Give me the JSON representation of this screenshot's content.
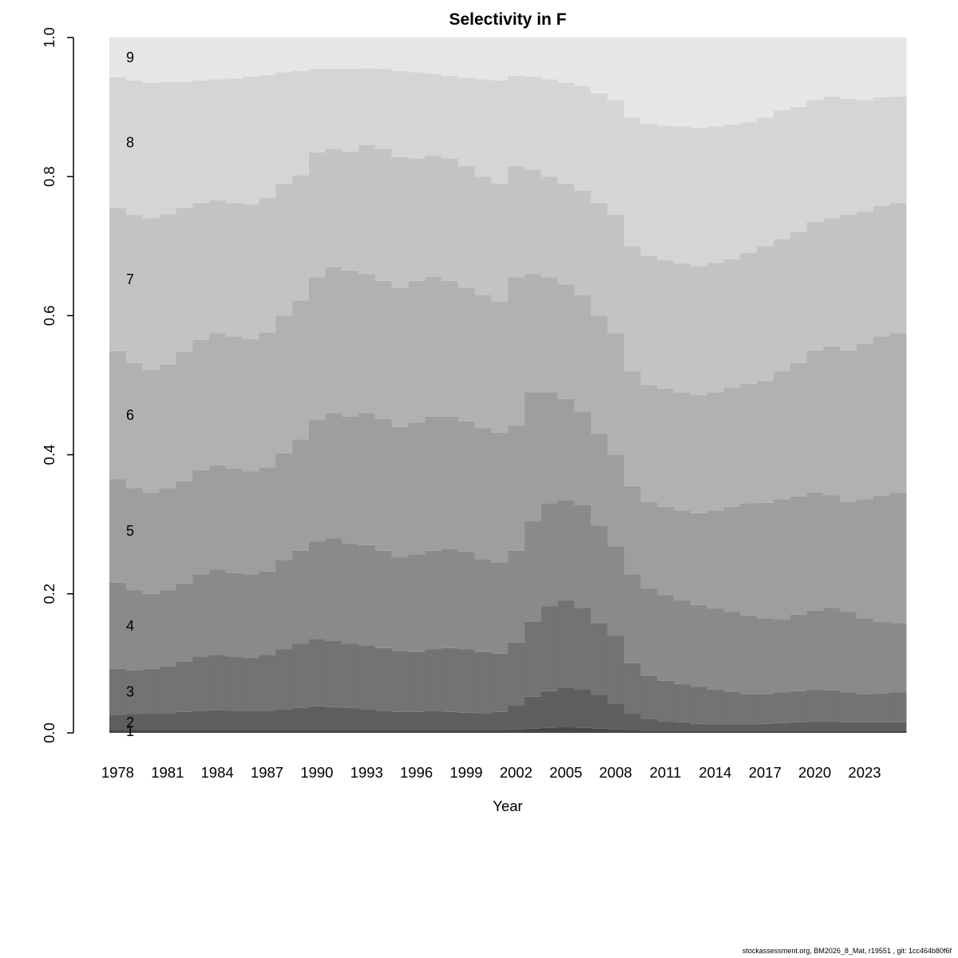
{
  "footer": "stockassessment.org, BM2026_8_Mat, r19551 , git: 1cc464b80f6f",
  "chart_data": {
    "type": "area",
    "subtype": "stacked-step-proportions",
    "title": "Selectivity in F",
    "xlabel": "Year",
    "ylabel": "",
    "ylim": [
      0,
      1
    ],
    "grid": false,
    "legend": "none",
    "age_band_labels": [
      "1",
      "2",
      "3",
      "4",
      "5",
      "6",
      "7",
      "8",
      "9"
    ],
    "colors": [
      "#474747",
      "#5e5e5e",
      "#737373",
      "#8a8a8a",
      "#9e9e9e",
      "#b1b1b1",
      "#c3c3c3",
      "#d5d5d5",
      "#e6e6e6"
    ],
    "x": [
      1978,
      1979,
      1980,
      1981,
      1982,
      1983,
      1984,
      1985,
      1986,
      1987,
      1988,
      1989,
      1990,
      1991,
      1992,
      1993,
      1994,
      1995,
      1996,
      1997,
      1998,
      1999,
      2000,
      2001,
      2002,
      2003,
      2004,
      2005,
      2006,
      2007,
      2008,
      2009,
      2010,
      2011,
      2012,
      2013,
      2014,
      2015,
      2016,
      2017,
      2018,
      2019,
      2020,
      2021,
      2022,
      2023,
      2024,
      2025
    ],
    "x_ticks": [
      1978,
      1981,
      1984,
      1987,
      1990,
      1993,
      1996,
      1999,
      2002,
      2005,
      2008,
      2011,
      2014,
      2017,
      2020,
      2023
    ],
    "y_tick_values": [
      0.0,
      0.2,
      0.4,
      0.6,
      0.8,
      1.0
    ],
    "y_tick_labels": [
      "0.0",
      "0.2",
      "0.4",
      "0.6",
      "0.8",
      "1.0"
    ],
    "series": [
      {
        "name": "1",
        "cumulative": [
          0.004,
          0.004,
          0.004,
          0.004,
          0.004,
          0.004,
          0.004,
          0.004,
          0.004,
          0.004,
          0.004,
          0.004,
          0.004,
          0.004,
          0.004,
          0.004,
          0.004,
          0.004,
          0.004,
          0.004,
          0.004,
          0.004,
          0.004,
          0.004,
          0.005,
          0.006,
          0.007,
          0.008,
          0.007,
          0.006,
          0.005,
          0.004,
          0.003,
          0.003,
          0.003,
          0.003,
          0.003,
          0.003,
          0.003,
          0.003,
          0.003,
          0.003,
          0.003,
          0.003,
          0.003,
          0.003,
          0.003,
          0.003
        ]
      },
      {
        "name": "2",
        "cumulative": [
          0.026,
          0.027,
          0.028,
          0.028,
          0.03,
          0.032,
          0.033,
          0.032,
          0.031,
          0.032,
          0.034,
          0.036,
          0.038,
          0.037,
          0.036,
          0.034,
          0.032,
          0.03,
          0.03,
          0.031,
          0.03,
          0.029,
          0.028,
          0.03,
          0.04,
          0.052,
          0.06,
          0.065,
          0.062,
          0.055,
          0.042,
          0.028,
          0.02,
          0.017,
          0.015,
          0.013,
          0.012,
          0.012,
          0.012,
          0.013,
          0.014,
          0.015,
          0.016,
          0.016,
          0.015,
          0.015,
          0.015,
          0.015
        ]
      },
      {
        "name": "3",
        "cumulative": [
          0.092,
          0.09,
          0.092,
          0.096,
          0.103,
          0.11,
          0.112,
          0.11,
          0.108,
          0.112,
          0.12,
          0.128,
          0.135,
          0.132,
          0.128,
          0.126,
          0.122,
          0.118,
          0.116,
          0.12,
          0.122,
          0.12,
          0.116,
          0.114,
          0.13,
          0.16,
          0.182,
          0.19,
          0.18,
          0.158,
          0.14,
          0.1,
          0.082,
          0.075,
          0.07,
          0.066,
          0.062,
          0.059,
          0.056,
          0.056,
          0.058,
          0.06,
          0.062,
          0.061,
          0.058,
          0.056,
          0.057,
          0.058
        ]
      },
      {
        "name": "4",
        "cumulative": [
          0.216,
          0.205,
          0.2,
          0.205,
          0.215,
          0.228,
          0.235,
          0.23,
          0.228,
          0.232,
          0.248,
          0.262,
          0.275,
          0.28,
          0.272,
          0.27,
          0.262,
          0.252,
          0.256,
          0.262,
          0.265,
          0.26,
          0.25,
          0.245,
          0.262,
          0.305,
          0.33,
          0.335,
          0.328,
          0.298,
          0.268,
          0.228,
          0.208,
          0.198,
          0.19,
          0.184,
          0.179,
          0.174,
          0.169,
          0.165,
          0.163,
          0.17,
          0.176,
          0.18,
          0.174,
          0.165,
          0.16,
          0.158
        ]
      },
      {
        "name": "5",
        "cumulative": [
          0.365,
          0.352,
          0.345,
          0.352,
          0.362,
          0.378,
          0.385,
          0.38,
          0.376,
          0.382,
          0.402,
          0.422,
          0.45,
          0.46,
          0.455,
          0.46,
          0.452,
          0.44,
          0.446,
          0.455,
          0.455,
          0.448,
          0.438,
          0.432,
          0.442,
          0.49,
          0.49,
          0.48,
          0.462,
          0.43,
          0.4,
          0.355,
          0.332,
          0.325,
          0.32,
          0.316,
          0.32,
          0.325,
          0.33,
          0.331,
          0.336,
          0.34,
          0.346,
          0.342,
          0.332,
          0.336,
          0.341,
          0.345
        ]
      },
      {
        "name": "6",
        "cumulative": [
          0.549,
          0.532,
          0.522,
          0.53,
          0.548,
          0.565,
          0.575,
          0.57,
          0.566,
          0.576,
          0.6,
          0.622,
          0.655,
          0.67,
          0.665,
          0.66,
          0.65,
          0.64,
          0.65,
          0.656,
          0.65,
          0.64,
          0.63,
          0.62,
          0.655,
          0.66,
          0.655,
          0.645,
          0.63,
          0.6,
          0.575,
          0.52,
          0.5,
          0.495,
          0.49,
          0.486,
          0.49,
          0.496,
          0.502,
          0.506,
          0.52,
          0.532,
          0.55,
          0.556,
          0.55,
          0.56,
          0.57,
          0.575
        ]
      },
      {
        "name": "7",
        "cumulative": [
          0.755,
          0.745,
          0.74,
          0.746,
          0.755,
          0.762,
          0.766,
          0.762,
          0.76,
          0.77,
          0.79,
          0.802,
          0.835,
          0.84,
          0.836,
          0.845,
          0.84,
          0.828,
          0.826,
          0.83,
          0.826,
          0.815,
          0.8,
          0.79,
          0.815,
          0.81,
          0.8,
          0.79,
          0.78,
          0.762,
          0.745,
          0.7,
          0.686,
          0.68,
          0.675,
          0.671,
          0.676,
          0.681,
          0.69,
          0.7,
          0.71,
          0.72,
          0.735,
          0.74,
          0.745,
          0.75,
          0.758,
          0.762
        ]
      },
      {
        "name": "8",
        "cumulative": [
          0.943,
          0.938,
          0.935,
          0.936,
          0.936,
          0.938,
          0.94,
          0.941,
          0.944,
          0.946,
          0.95,
          0.952,
          0.955,
          0.955,
          0.955,
          0.956,
          0.955,
          0.952,
          0.95,
          0.948,
          0.945,
          0.942,
          0.94,
          0.938,
          0.945,
          0.944,
          0.94,
          0.935,
          0.93,
          0.92,
          0.91,
          0.885,
          0.876,
          0.873,
          0.872,
          0.87,
          0.872,
          0.875,
          0.878,
          0.885,
          0.895,
          0.9,
          0.91,
          0.915,
          0.912,
          0.91,
          0.914,
          0.915
        ]
      },
      {
        "name": "9",
        "cumulative": [
          1.0,
          1.0,
          1.0,
          1.0,
          1.0,
          1.0,
          1.0,
          1.0,
          1.0,
          1.0,
          1.0,
          1.0,
          1.0,
          1.0,
          1.0,
          1.0,
          1.0,
          1.0,
          1.0,
          1.0,
          1.0,
          1.0,
          1.0,
          1.0,
          1.0,
          1.0,
          1.0,
          1.0,
          1.0,
          1.0,
          1.0,
          1.0,
          1.0,
          1.0,
          1.0,
          1.0,
          1.0,
          1.0,
          1.0,
          1.0,
          1.0,
          1.0,
          1.0,
          1.0,
          1.0,
          1.0,
          1.0,
          1.0
        ]
      }
    ]
  }
}
